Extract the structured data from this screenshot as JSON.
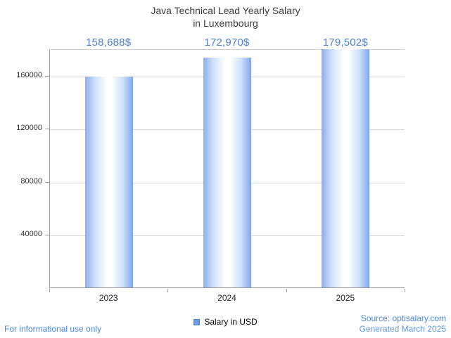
{
  "title": {
    "line1": "Java Technical Lead Yearly Salary",
    "line2": "in Luxembourg"
  },
  "chart_data": {
    "type": "bar",
    "title": "Java Technical Lead Yearly Salary in Luxembourg",
    "categories": [
      "2023",
      "2024",
      "2025"
    ],
    "values": [
      158688,
      172970,
      179502
    ],
    "value_labels": [
      "158,688$",
      "172,970$",
      "179,502$"
    ],
    "xlabel": "",
    "ylabel": "",
    "ylim": [
      0,
      180000
    ],
    "yticks": [
      40000,
      80000,
      120000,
      160000
    ],
    "grid": true,
    "legend": {
      "label": "Salary in USD",
      "position": "bottom"
    }
  },
  "footer": {
    "left": "For informational use only",
    "source": "Source: optisalary.com",
    "generated": "Generated March 2025"
  },
  "colors": {
    "title_text": "#3d3d3d",
    "value_label": "#4b7fd6",
    "bar_main": "#8db2ee",
    "bar_edge": "#7aa3e8",
    "legend_swatch": "#6d9eeb",
    "footer_link": "#4a86e8",
    "axis": "#9a9a9a",
    "grid": "#d8d8d8"
  }
}
